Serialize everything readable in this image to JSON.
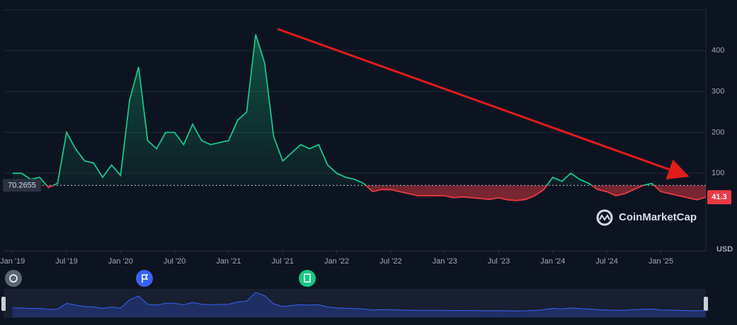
{
  "chart_data": {
    "type": "line",
    "y_label": "USD",
    "watermark": "CoinMarketCap",
    "baseline": 70.2655,
    "x": [
      "2019-01",
      "2019-02",
      "2019-03",
      "2019-04",
      "2019-05",
      "2019-06",
      "2019-07",
      "2019-08",
      "2019-09",
      "2019-10",
      "2019-11",
      "2019-12",
      "2020-01",
      "2020-02",
      "2020-03",
      "2020-04",
      "2020-05",
      "2020-06",
      "2020-07",
      "2020-08",
      "2020-09",
      "2020-10",
      "2020-11",
      "2020-12",
      "2021-01",
      "2021-02",
      "2021-03",
      "2021-04",
      "2021-05",
      "2021-06",
      "2021-07",
      "2021-08",
      "2021-09",
      "2021-10",
      "2021-11",
      "2021-12",
      "2022-01",
      "2022-02",
      "2022-03",
      "2022-04",
      "2022-05",
      "2022-06",
      "2022-07",
      "2022-08",
      "2022-09",
      "2022-10",
      "2022-11",
      "2022-12",
      "2023-01",
      "2023-02",
      "2023-03",
      "2023-04",
      "2023-05",
      "2023-06",
      "2023-07",
      "2023-08",
      "2023-09",
      "2023-10",
      "2023-11",
      "2023-12",
      "2024-01",
      "2024-02",
      "2024-03",
      "2024-04",
      "2024-05",
      "2024-06",
      "2024-07",
      "2024-08",
      "2024-09",
      "2024-10",
      "2024-11",
      "2024-12",
      "2025-01",
      "2025-02",
      "2025-03",
      "2025-04",
      "2025-05",
      "2025-06"
    ],
    "series": [
      {
        "color_up": "#16c784",
        "color_down": "#ea3943",
        "values": [
          100,
          100,
          85,
          90,
          65,
          75,
          200,
          160,
          130,
          125,
          90,
          120,
          95,
          280,
          360,
          180,
          160,
          200,
          200,
          170,
          220,
          180,
          170,
          175,
          180,
          230,
          250,
          440,
          370,
          190,
          130,
          150,
          170,
          160,
          170,
          120,
          100,
          90,
          85,
          75,
          55,
          60,
          60,
          55,
          50,
          45,
          45,
          45,
          45,
          40,
          42,
          40,
          38,
          36,
          40,
          35,
          33,
          36,
          45,
          60,
          90,
          80,
          100,
          85,
          75,
          60,
          55,
          45,
          50,
          60,
          70,
          75,
          55,
          50,
          45,
          40,
          35,
          41.3
        ]
      }
    ],
    "xlim": [
      "2018-12",
      "2025-06"
    ],
    "xticks": [
      {
        "value": "2019-01",
        "label": "Jan '19"
      },
      {
        "value": "2019-07",
        "label": "Jul '19"
      },
      {
        "value": "2020-01",
        "label": "Jan '20"
      },
      {
        "value": "2020-07",
        "label": "Jul '20"
      },
      {
        "value": "2021-01",
        "label": "Jan '21"
      },
      {
        "value": "2021-07",
        "label": "Jul '21"
      },
      {
        "value": "2022-01",
        "label": "Jan '22"
      },
      {
        "value": "2022-07",
        "label": "Jul '22"
      },
      {
        "value": "2023-01",
        "label": "Jan '23"
      },
      {
        "value": "2023-07",
        "label": "Jul '23"
      },
      {
        "value": "2024-01",
        "label": "Jan '24"
      },
      {
        "value": "2024-07",
        "label": "Jul '24"
      },
      {
        "value": "2025-01",
        "label": "Jan '25"
      }
    ],
    "ylim": [
      -90,
      500
    ],
    "yticks": [
      100,
      200,
      300,
      400
    ],
    "grid": true
  }
}
